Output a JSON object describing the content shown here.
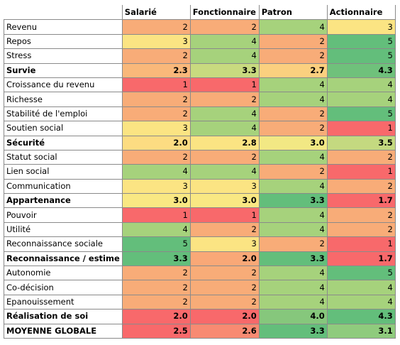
{
  "table": {
    "columns": [
      "Salarié",
      "Fonctionnaire",
      "Patron",
      "Actionnaire"
    ],
    "rows": [
      {
        "label": "Revenu",
        "values": [
          "2",
          "2",
          "4",
          "3"
        ],
        "colors": [
          "#f8ac78",
          "#f8ac78",
          "#a6d27c",
          "#fbe483"
        ]
      },
      {
        "label": "Repos",
        "values": [
          "3",
          "4",
          "2",
          "5"
        ],
        "colors": [
          "#fbe483",
          "#a6d27c",
          "#f8ac78",
          "#63be7b"
        ]
      },
      {
        "label": "Stress",
        "values": [
          "2",
          "4",
          "2",
          "5"
        ],
        "colors": [
          "#f8ac78",
          "#a6d27c",
          "#f8ac78",
          "#63be7b"
        ]
      },
      {
        "label": "Survie",
        "summary": true,
        "values": [
          "2.3",
          "3.3",
          "2.7",
          "4.3"
        ],
        "colors": [
          "#f9b87a",
          "#c8da7f",
          "#fbd07f",
          "#6fc17b"
        ]
      },
      {
        "label": "Croissance du revenu",
        "values": [
          "1",
          "1",
          "4",
          "4"
        ],
        "colors": [
          "#f8696b",
          "#f8696b",
          "#a6d27c",
          "#a6d27c"
        ]
      },
      {
        "label": "Richesse",
        "values": [
          "2",
          "2",
          "4",
          "4"
        ],
        "colors": [
          "#f8ac78",
          "#f8ac78",
          "#a6d27c",
          "#a6d27c"
        ]
      },
      {
        "label": "Stabilité de l'emploi",
        "values": [
          "2",
          "4",
          "2",
          "5"
        ],
        "colors": [
          "#f8ac78",
          "#a6d27c",
          "#f8ac78",
          "#63be7b"
        ]
      },
      {
        "label": "Soutien social",
        "values": [
          "3",
          "4",
          "2",
          "1"
        ],
        "colors": [
          "#fbe483",
          "#a6d27c",
          "#f8ac78",
          "#f8696b"
        ]
      },
      {
        "label": "Sécurité",
        "summary": true,
        "values": [
          "2.0",
          "2.8",
          "3.0",
          "3.5"
        ],
        "colors": [
          "#fcdc82",
          "#fbe483",
          "#f2e884",
          "#c4d980"
        ]
      },
      {
        "label": "Statut social",
        "values": [
          "2",
          "2",
          "4",
          "2"
        ],
        "colors": [
          "#f8ac78",
          "#f8ac78",
          "#a6d27c",
          "#f8ac78"
        ]
      },
      {
        "label": "Lien social",
        "values": [
          "4",
          "4",
          "2",
          "1"
        ],
        "colors": [
          "#a6d27c",
          "#a6d27c",
          "#f8ac78",
          "#f8696b"
        ]
      },
      {
        "label": "Communication",
        "values": [
          "3",
          "3",
          "4",
          "2"
        ],
        "colors": [
          "#fbe483",
          "#fbe483",
          "#a6d27c",
          "#f8ac78"
        ]
      },
      {
        "label": "Appartenance",
        "summary": true,
        "values": [
          "3.0",
          "3.0",
          "3.3",
          "1.7"
        ],
        "colors": [
          "#f9e883",
          "#f9e883",
          "#63be7b",
          "#f8696b"
        ]
      },
      {
        "label": "Pouvoir",
        "values": [
          "1",
          "1",
          "4",
          "2"
        ],
        "colors": [
          "#f8696b",
          "#f8696b",
          "#a6d27c",
          "#f8ac78"
        ]
      },
      {
        "label": "Utilité",
        "values": [
          "4",
          "2",
          "4",
          "2"
        ],
        "colors": [
          "#a6d27c",
          "#f8ac78",
          "#a6d27c",
          "#f8ac78"
        ]
      },
      {
        "label": "Reconnaissance sociale",
        "values": [
          "5",
          "3",
          "2",
          "1"
        ],
        "colors": [
          "#63be7b",
          "#fbe483",
          "#f8ac78",
          "#f8696b"
        ]
      },
      {
        "label": "Reconnaissance / estime",
        "summary": true,
        "values": [
          "3.3",
          "2.0",
          "3.3",
          "1.7"
        ],
        "colors": [
          "#63be7b",
          "#f9a877",
          "#63be7b",
          "#f8696b"
        ]
      },
      {
        "label": "Autonomie",
        "values": [
          "2",
          "2",
          "4",
          "5"
        ],
        "colors": [
          "#f8ac78",
          "#f8ac78",
          "#a6d27c",
          "#63be7b"
        ]
      },
      {
        "label": "Co-décision",
        "values": [
          "2",
          "2",
          "4",
          "4"
        ],
        "colors": [
          "#f8ac78",
          "#f8ac78",
          "#a6d27c",
          "#a6d27c"
        ]
      },
      {
        "label": "Epanouissement",
        "values": [
          "2",
          "2",
          "4",
          "4"
        ],
        "colors": [
          "#f8ac78",
          "#f8ac78",
          "#a6d27c",
          "#a6d27c"
        ]
      },
      {
        "label": "Réalisation de soi",
        "summary": true,
        "values": [
          "2.0",
          "2.0",
          "4.0",
          "4.3"
        ],
        "colors": [
          "#f8696b",
          "#f8696b",
          "#86c77c",
          "#63be7b"
        ]
      },
      {
        "label": "MOYENNE GLOBALE",
        "summary": true,
        "values": [
          "2.5",
          "2.6",
          "3.3",
          "3.1"
        ],
        "colors": [
          "#f8696b",
          "#f88a72",
          "#63be7b",
          "#8fcb7d"
        ]
      }
    ]
  }
}
